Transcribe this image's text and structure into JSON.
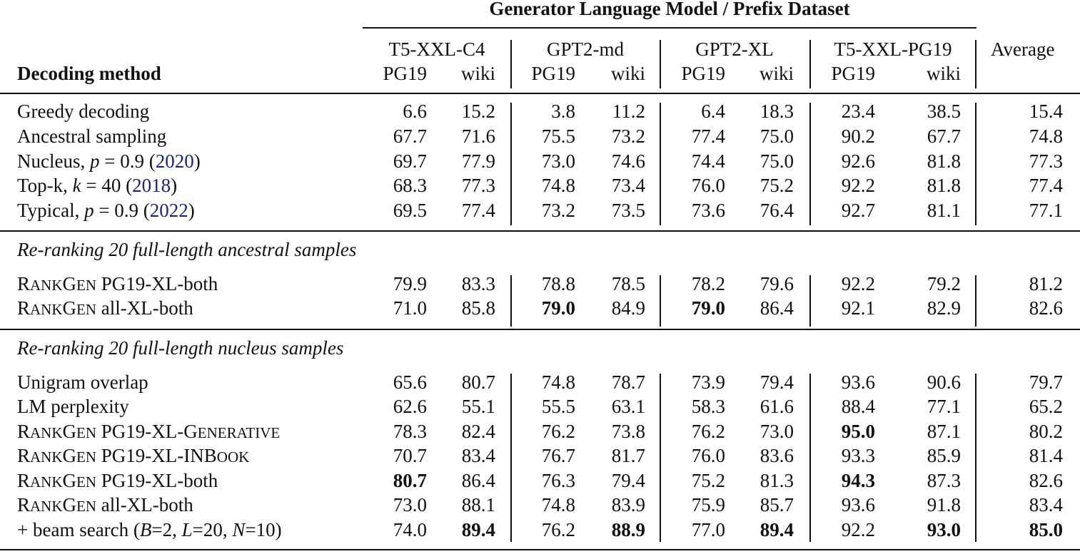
{
  "header": {
    "group_title": "Generator Language Model / Prefix Dataset",
    "decoding_label": "Decoding method",
    "average_label": "Average",
    "models": [
      {
        "name": "T5-XXL-C4",
        "sub": [
          "PG19",
          "wiki"
        ]
      },
      {
        "name": "GPT2-md",
        "sub": [
          "PG19",
          "wiki"
        ]
      },
      {
        "name": "GPT2-XL",
        "sub": [
          "PG19",
          "wiki"
        ]
      },
      {
        "name": "T5-XXL-PG19",
        "sub": [
          "PG19",
          "wiki"
        ]
      }
    ]
  },
  "sections": [
    {
      "title": "",
      "rows": [
        {
          "label": "Greedy decoding",
          "values": [
            "6.6",
            "15.2",
            "3.8",
            "11.2",
            "6.4",
            "18.3",
            "23.4",
            "38.5",
            "15.4"
          ],
          "bold": []
        },
        {
          "label": "Ancestral sampling",
          "values": [
            "67.7",
            "71.6",
            "75.5",
            "73.2",
            "77.4",
            "75.0",
            "90.2",
            "67.7",
            "74.8"
          ],
          "bold": []
        },
        {
          "label_parts": [
            "Nucleus, ",
            "p",
            " = 0.9 (",
            "2020",
            ")"
          ],
          "values": [
            "69.7",
            "77.9",
            "73.0",
            "74.6",
            "74.4",
            "75.0",
            "92.6",
            "81.8",
            "77.3"
          ],
          "bold": []
        },
        {
          "label_parts": [
            "Top-k, ",
            "k",
            " = 40 (",
            "2018",
            ")"
          ],
          "values": [
            "68.3",
            "77.3",
            "74.8",
            "73.4",
            "76.0",
            "75.2",
            "92.2",
            "81.8",
            "77.4"
          ],
          "bold": []
        },
        {
          "label_parts": [
            "Typical, ",
            "p",
            " = 0.9 (",
            "2022",
            ")"
          ],
          "values": [
            "69.5",
            "77.4",
            "73.2",
            "73.5",
            "73.6",
            "76.4",
            "92.7",
            "81.1",
            "77.1"
          ],
          "bold": []
        }
      ]
    },
    {
      "title": "Re-ranking 20 full-length ancestral samples",
      "rows": [
        {
          "rg": [
            "R",
            "ANK",
            "G",
            "EN"
          ],
          "label": " PG19-XL-both",
          "values": [
            "79.9",
            "83.3",
            "78.8",
            "78.5",
            "78.2",
            "79.6",
            "92.2",
            "79.2",
            "81.2"
          ],
          "bold": []
        },
        {
          "rg": [
            "R",
            "ANK",
            "G",
            "EN"
          ],
          "label": " all-XL-both",
          "values": [
            "71.0",
            "85.8",
            "79.0",
            "84.9",
            "79.0",
            "86.4",
            "92.1",
            "82.9",
            "82.6"
          ],
          "bold": [
            2,
            4
          ]
        }
      ]
    },
    {
      "title": "Re-ranking 20 full-length nucleus samples",
      "rows": [
        {
          "label": "Unigram overlap",
          "values": [
            "65.6",
            "80.7",
            "74.8",
            "78.7",
            "73.9",
            "79.4",
            "93.6",
            "90.6",
            "79.7"
          ],
          "bold": []
        },
        {
          "label": "LM perplexity",
          "values": [
            "62.6",
            "55.1",
            "55.5",
            "63.1",
            "58.3",
            "61.6",
            "88.4",
            "77.1",
            "65.2"
          ],
          "bold": []
        },
        {
          "rg": [
            "R",
            "ANK",
            "G",
            "EN"
          ],
          "label": " PG19-XL-",
          "tail_sc": [
            "G",
            "ENERATIVE"
          ],
          "values": [
            "78.3",
            "82.4",
            "76.2",
            "73.8",
            "76.2",
            "73.0",
            "95.0",
            "87.1",
            "80.2"
          ],
          "bold": [
            6
          ]
        },
        {
          "rg": [
            "R",
            "ANK",
            "G",
            "EN"
          ],
          "label": " PG19-XL-",
          "tail_sc": [
            "I",
            "N",
            "B",
            "OOK"
          ],
          "values": [
            "70.7",
            "83.4",
            "76.7",
            "81.7",
            "76.0",
            "83.6",
            "93.3",
            "85.9",
            "81.4"
          ],
          "bold": []
        },
        {
          "rg": [
            "R",
            "ANK",
            "G",
            "EN"
          ],
          "label": " PG19-XL-both",
          "values": [
            "80.7",
            "86.4",
            "76.3",
            "79.4",
            "75.2",
            "81.3",
            "94.3",
            "87.3",
            "82.6"
          ],
          "bold": [
            0,
            6
          ]
        },
        {
          "rg": [
            "R",
            "ANK",
            "G",
            "EN"
          ],
          "label": " all-XL-both",
          "values": [
            "73.0",
            "88.1",
            "74.8",
            "83.9",
            "75.9",
            "85.7",
            "93.6",
            "91.8",
            "83.4"
          ],
          "bold": []
        },
        {
          "label_parts": [
            "+ beam search (",
            "B",
            "=2, ",
            "L",
            "=20, ",
            "N",
            "=10)"
          ],
          "values": [
            "74.0",
            "89.4",
            "76.2",
            "88.9",
            "77.0",
            "89.4",
            "92.2",
            "93.0",
            "85.0"
          ],
          "bold": [
            1,
            3,
            5,
            7,
            8
          ]
        }
      ]
    }
  ]
}
